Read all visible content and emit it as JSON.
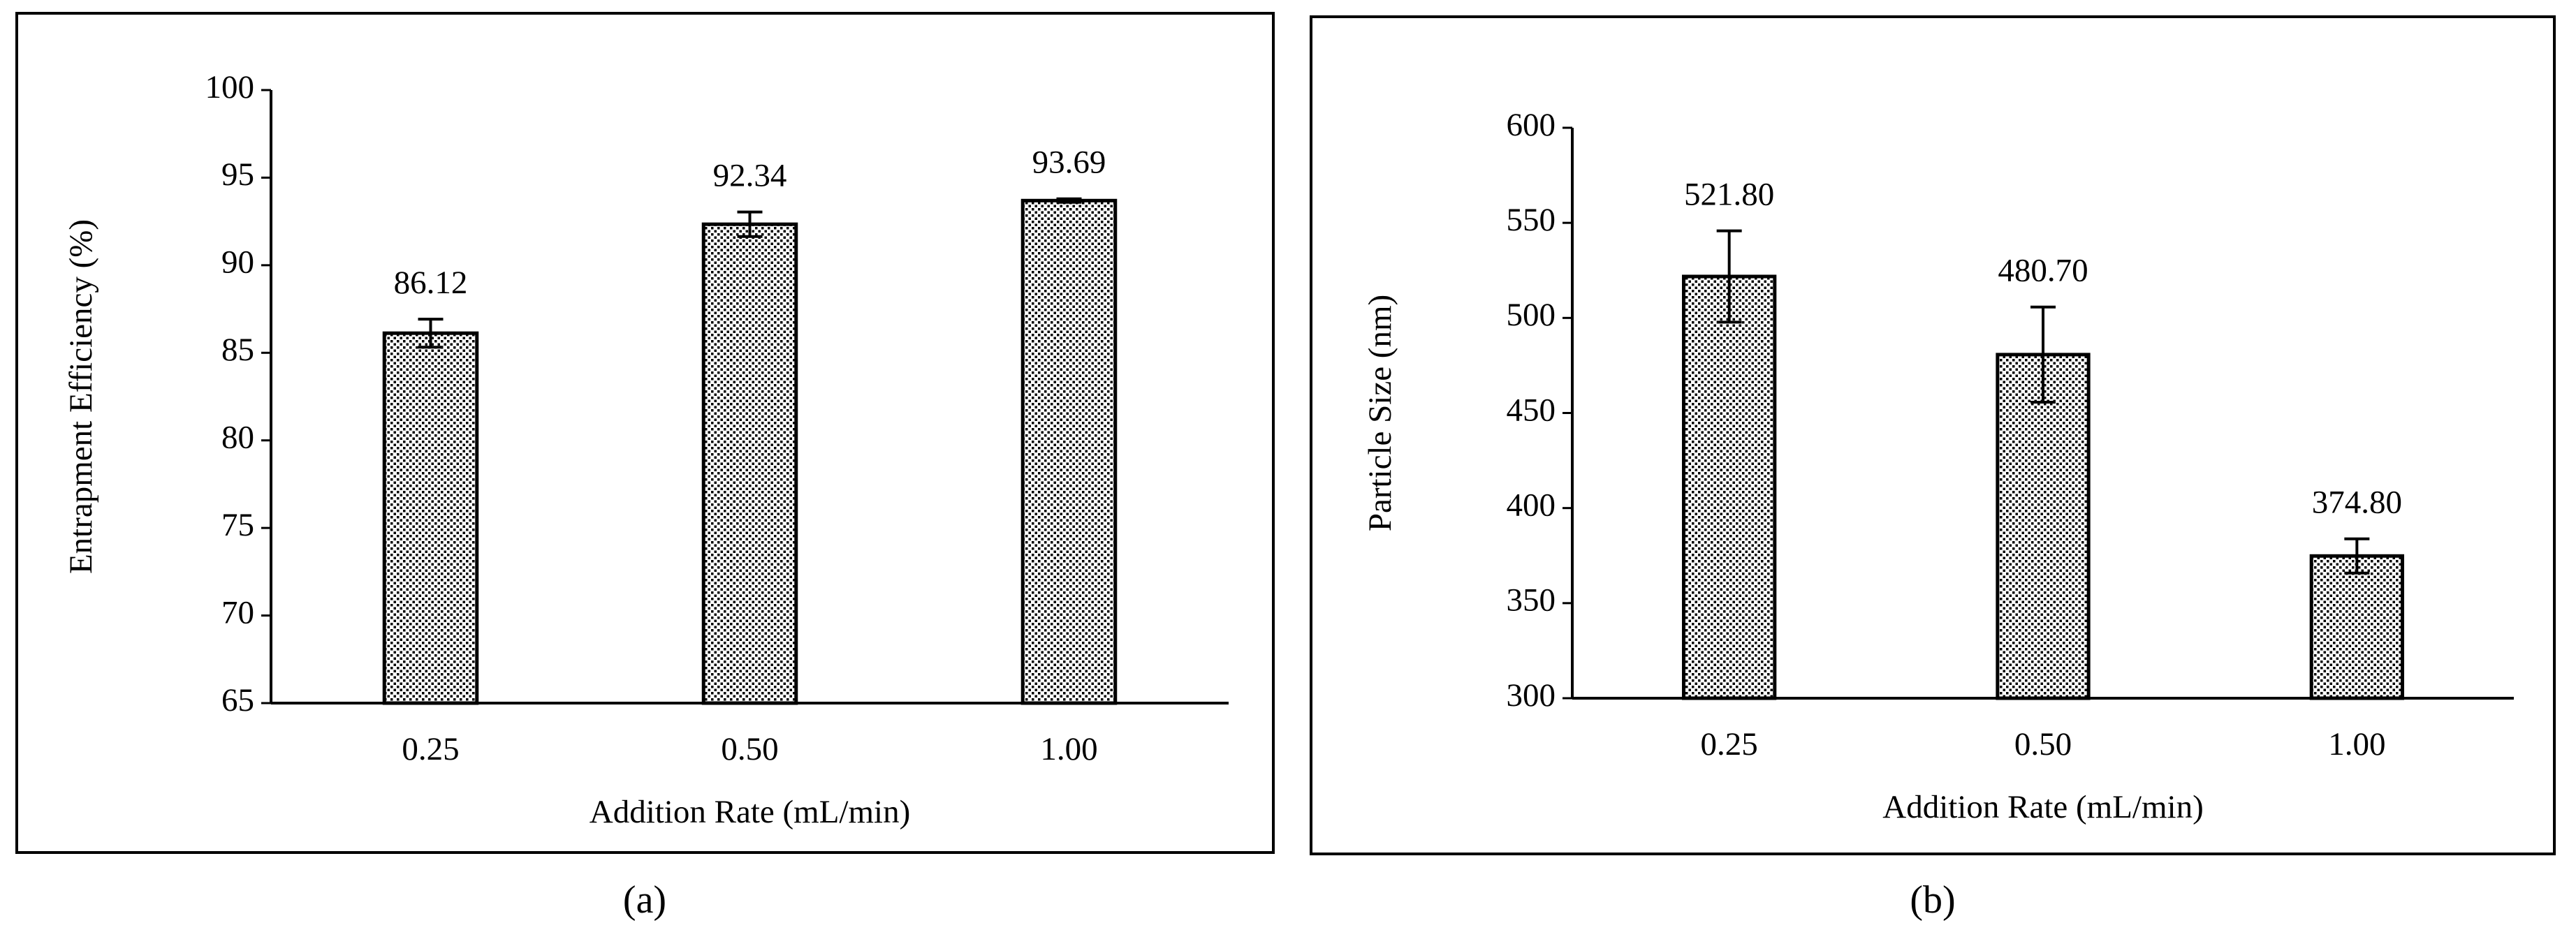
{
  "chart_data": [
    {
      "type": "bar",
      "caption": "(a)",
      "x_label": "Addition Rate (mL/min)",
      "y_label": "Entrapment Efficiency (%)",
      "categories": [
        "0.25",
        "0.50",
        "1.00"
      ],
      "values": [
        86.12,
        92.34,
        93.69
      ],
      "errors": [
        0.8,
        0.7,
        0.1
      ],
      "ylim": [
        65,
        100
      ],
      "yticks": [
        65,
        70,
        75,
        80,
        85,
        90,
        95,
        100
      ],
      "color": "#000000",
      "grid": false
    },
    {
      "type": "bar",
      "caption": "(b)",
      "x_label": "Addition Rate (mL/min)",
      "y_label": "Particle Size (nm)",
      "categories": [
        "0.25",
        "0.50",
        "1.00"
      ],
      "values": [
        521.8,
        480.7,
        374.8
      ],
      "value_labels": [
        "521.80",
        "480.70",
        "374.80"
      ],
      "errors": [
        24,
        25,
        9
      ],
      "ylim": [
        300,
        600
      ],
      "yticks": [
        300,
        350,
        400,
        450,
        500,
        550,
        600
      ],
      "color": "#000000",
      "grid": false
    }
  ]
}
